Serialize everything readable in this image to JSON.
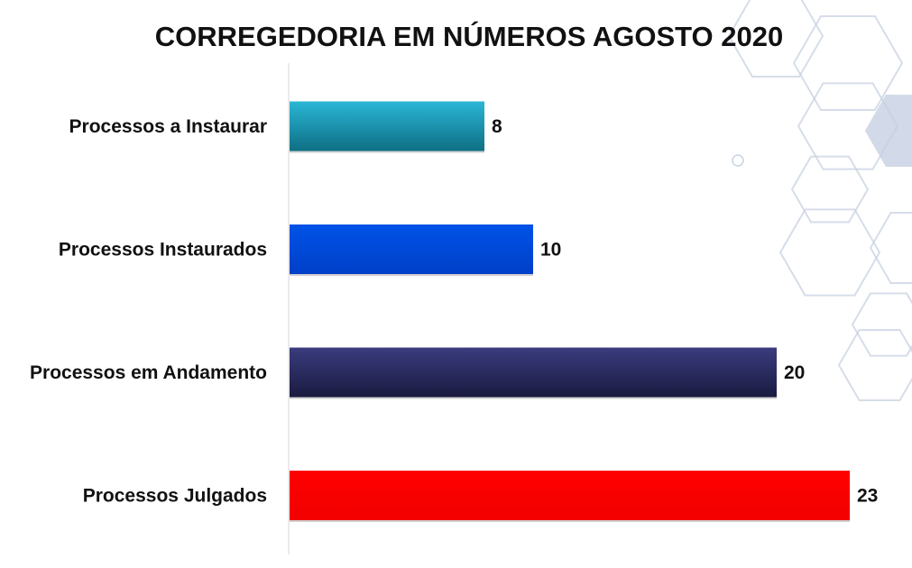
{
  "chart_data": {
    "type": "bar",
    "orientation": "horizontal",
    "title": "CORREGEDORIA EM NÚMEROS AGOSTO 2020",
    "xlabel": "",
    "ylabel": "",
    "xlim": [
      0,
      23
    ],
    "grid": false,
    "legend": "none",
    "data_labels": true,
    "categories": [
      "Processos a Instaurar",
      "Processos Instaurados",
      "Processos em Andamento",
      "Processos Julgados"
    ],
    "values": [
      8,
      10,
      20,
      23
    ],
    "colors": [
      "#1ba3c0",
      "#0047d6",
      "#2b2c62",
      "#ff0000"
    ],
    "gradients": [
      [
        "#2ab6d6",
        "#0e6f84"
      ],
      [
        "#0052e8",
        "#0040c8"
      ],
      [
        "#3a3c7e",
        "#1a1b40"
      ],
      [
        "#ff0000",
        "#f20000"
      ]
    ]
  },
  "background": {
    "motif": "hexagon-pattern",
    "stroke_color": "#c8d2e2",
    "accent_color": "#c7d0e4"
  }
}
